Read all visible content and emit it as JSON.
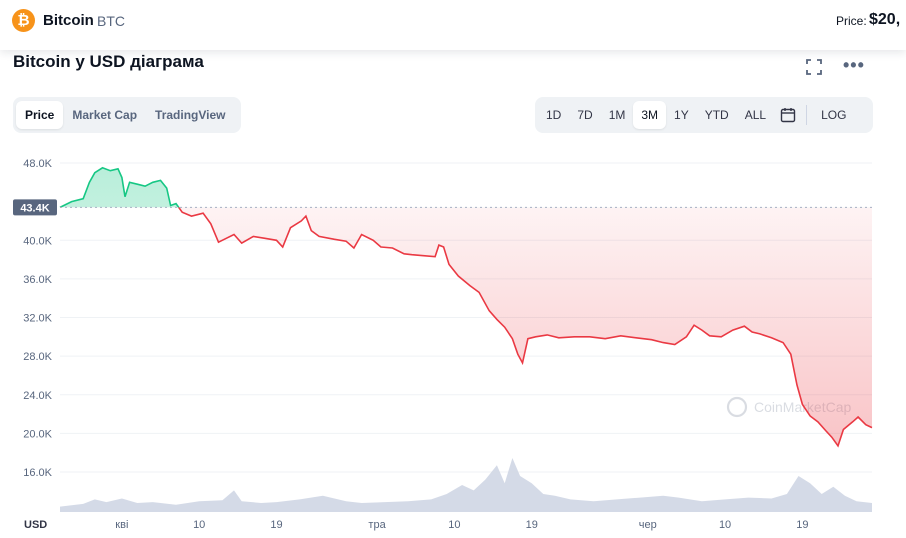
{
  "header": {
    "logo_glyph": "₿",
    "coin_name": "Bitcoin",
    "coin_symbol": "BTC",
    "price_label": "Price:",
    "price_value": "$20,"
  },
  "chart_title": "Bitcoin у USD діаграма",
  "chart_type_tabs": [
    {
      "label": "Price",
      "active": true
    },
    {
      "label": "Market Cap",
      "active": false
    },
    {
      "label": "TradingView",
      "active": false
    }
  ],
  "range_tabs": [
    {
      "label": "1D",
      "active": false
    },
    {
      "label": "7D",
      "active": false
    },
    {
      "label": "1M",
      "active": false
    },
    {
      "label": "3M",
      "active": true
    },
    {
      "label": "1Y",
      "active": false
    },
    {
      "label": "YTD",
      "active": false
    },
    {
      "label": "ALL",
      "active": false
    }
  ],
  "log_label": "LOG",
  "icons": {
    "fullscreen": "fullscreen-icon",
    "more": "more-icon",
    "calendar": "calendar-icon"
  },
  "colors": {
    "up": "#16c784",
    "down": "#ea3943",
    "grid": "#eff2f5",
    "volume": "#cfd6e4",
    "baseline_badge": "#58667e"
  },
  "chart_data": {
    "type": "line",
    "currency_label": "USD",
    "watermark": "CoinMarketCap",
    "ylim": [
      12000,
      50000
    ],
    "y_ticks": [
      {
        "value": 48000,
        "label": "48.0K"
      },
      {
        "value": 40000,
        "label": "40.0K"
      },
      {
        "value": 36000,
        "label": "36.0K"
      },
      {
        "value": 32000,
        "label": "32.0K"
      },
      {
        "value": 28000,
        "label": "28.0K"
      },
      {
        "value": 24000,
        "label": "24.0K"
      },
      {
        "value": 20000,
        "label": "20.0K"
      },
      {
        "value": 16000,
        "label": "16.0K"
      }
    ],
    "baseline": {
      "value": 43400,
      "label": "43.4K"
    },
    "x_range_days": [
      0,
      100
    ],
    "x_ticks": [
      {
        "day": 8,
        "label": "кві"
      },
      {
        "day": 18,
        "label": "10"
      },
      {
        "day": 28,
        "label": "19"
      },
      {
        "day": 41,
        "label": "тра"
      },
      {
        "day": 51,
        "label": "10"
      },
      {
        "day": 61,
        "label": "19"
      },
      {
        "day": 76,
        "label": "чер"
      },
      {
        "day": 86,
        "label": "10"
      },
      {
        "day": 96,
        "label": "19"
      }
    ],
    "price_points": [
      [
        0,
        43400
      ],
      [
        1.5,
        44000
      ],
      [
        3,
        44300
      ],
      [
        3.8,
        46000
      ],
      [
        4.5,
        47000
      ],
      [
        5.5,
        47500
      ],
      [
        6.5,
        47200
      ],
      [
        7.5,
        47400
      ],
      [
        8,
        46500
      ],
      [
        8.4,
        44500
      ],
      [
        9,
        46000
      ],
      [
        10,
        45800
      ],
      [
        11,
        45600
      ],
      [
        12,
        46000
      ],
      [
        13,
        46200
      ],
      [
        13.8,
        45400
      ],
      [
        14.3,
        43600
      ],
      [
        15,
        43800
      ],
      [
        15.8,
        42900
      ],
      [
        17,
        42500
      ],
      [
        18.5,
        42800
      ],
      [
        19.5,
        41700
      ],
      [
        20.5,
        39800
      ],
      [
        21.5,
        40200
      ],
      [
        22.5,
        40600
      ],
      [
        23.5,
        39700
      ],
      [
        25,
        40400
      ],
      [
        26.5,
        40200
      ],
      [
        28,
        40000
      ],
      [
        28.8,
        39300
      ],
      [
        29.8,
        41300
      ],
      [
        31.2,
        42000
      ],
      [
        31.8,
        42500
      ],
      [
        32.5,
        41000
      ],
      [
        33.5,
        40400
      ],
      [
        35.5,
        40100
      ],
      [
        37,
        39900
      ],
      [
        38,
        39200
      ],
      [
        39,
        40600
      ],
      [
        40.5,
        40000
      ],
      [
        41.5,
        39300
      ],
      [
        43,
        39200
      ],
      [
        44.5,
        38600
      ],
      [
        45.5,
        38500
      ],
      [
        47,
        38400
      ],
      [
        48.5,
        38300
      ],
      [
        49,
        39500
      ],
      [
        49.6,
        39300
      ],
      [
        50.3,
        37500
      ],
      [
        51.5,
        36300
      ],
      [
        53,
        35300
      ],
      [
        54.2,
        34600
      ],
      [
        55.5,
        32700
      ],
      [
        56.5,
        31800
      ],
      [
        57.5,
        31000
      ],
      [
        58.5,
        29800
      ],
      [
        59.2,
        28200
      ],
      [
        59.8,
        27300
      ],
      [
        60.5,
        29800
      ],
      [
        61.5,
        30000
      ],
      [
        63,
        30200
      ],
      [
        64.5,
        29900
      ],
      [
        66.5,
        30000
      ],
      [
        68.5,
        30000
      ],
      [
        70.5,
        29800
      ],
      [
        72.5,
        30100
      ],
      [
        74.5,
        29900
      ],
      [
        76.5,
        29700
      ],
      [
        78,
        29400
      ],
      [
        79.5,
        29200
      ],
      [
        81,
        30000
      ],
      [
        82,
        31200
      ],
      [
        83,
        30700
      ],
      [
        84,
        30100
      ],
      [
        85.5,
        30000
      ],
      [
        87,
        30700
      ],
      [
        88.5,
        31100
      ],
      [
        89.5,
        30500
      ],
      [
        90.5,
        30300
      ],
      [
        92,
        29900
      ],
      [
        93.5,
        29400
      ],
      [
        94.5,
        28200
      ],
      [
        95.3,
        25000
      ],
      [
        96,
        23000
      ],
      [
        97,
        21800
      ],
      [
        98,
        21200
      ],
      [
        99,
        20300
      ],
      [
        99.8,
        19600
      ],
      [
        100.6,
        18700
      ],
      [
        101.3,
        20400
      ],
      [
        102.5,
        21200
      ],
      [
        103.2,
        21700
      ],
      [
        104.2,
        20900
      ],
      [
        105,
        20600
      ]
    ],
    "volume_profile": [
      [
        0,
        0.3
      ],
      [
        3,
        0.45
      ],
      [
        4.5,
        0.7
      ],
      [
        6,
        0.55
      ],
      [
        8,
        0.75
      ],
      [
        10,
        0.5
      ],
      [
        12,
        0.55
      ],
      [
        15,
        0.4
      ],
      [
        18,
        0.6
      ],
      [
        21,
        0.65
      ],
      [
        22.5,
        1.2
      ],
      [
        23.5,
        0.6
      ],
      [
        26,
        0.5
      ],
      [
        28,
        0.55
      ],
      [
        31,
        0.7
      ],
      [
        34,
        0.9
      ],
      [
        37,
        0.6
      ],
      [
        39,
        0.5
      ],
      [
        42,
        0.55
      ],
      [
        45,
        0.6
      ],
      [
        48,
        0.7
      ],
      [
        50,
        1.0
      ],
      [
        52,
        1.5
      ],
      [
        53.5,
        1.2
      ],
      [
        55,
        1.8
      ],
      [
        56.5,
        2.6
      ],
      [
        57.5,
        1.6
      ],
      [
        58.5,
        3.0
      ],
      [
        59.5,
        2.0
      ],
      [
        61,
        1.6
      ],
      [
        62.5,
        1.0
      ],
      [
        64,
        0.9
      ],
      [
        66,
        0.7
      ],
      [
        69,
        0.6
      ],
      [
        72,
        0.7
      ],
      [
        75,
        0.8
      ],
      [
        78,
        0.9
      ],
      [
        80,
        0.8
      ],
      [
        83,
        0.6
      ],
      [
        86,
        0.7
      ],
      [
        89,
        0.8
      ],
      [
        92,
        0.75
      ],
      [
        94,
        1.0
      ],
      [
        95.5,
        2.0
      ],
      [
        97,
        1.6
      ],
      [
        98.5,
        1.0
      ],
      [
        100,
        1.4
      ],
      [
        101.5,
        0.9
      ],
      [
        103,
        0.6
      ],
      [
        105,
        0.5
      ]
    ]
  }
}
